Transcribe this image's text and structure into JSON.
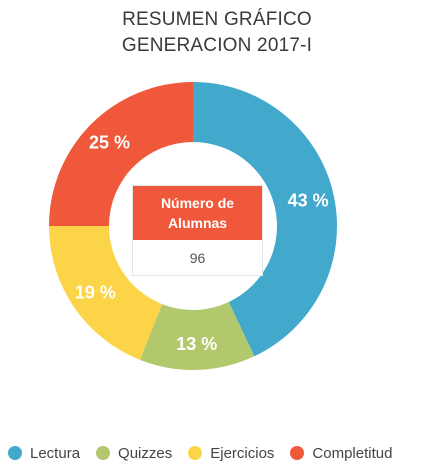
{
  "chart_data": {
    "type": "pie",
    "title": [
      "RESUMEN GRÁFICO",
      "GENERACION 2017-I"
    ],
    "center": {
      "label": "Número de Alumnas",
      "value": "96"
    },
    "slices": [
      {
        "label": "Lectura",
        "value": 43,
        "value_label": "43 %",
        "color": "#43a9cc"
      },
      {
        "label": "Quizzes",
        "value": 13,
        "value_label": "13 %",
        "color": "#b2c86d"
      },
      {
        "label": "Ejercicios",
        "value": 19,
        "value_label": "19 %",
        "color": "#fbd447"
      },
      {
        "label": "Completitud",
        "value": 25,
        "value_label": "25 %",
        "color": "#f0583b"
      }
    ],
    "legend_position": "bottom"
  }
}
